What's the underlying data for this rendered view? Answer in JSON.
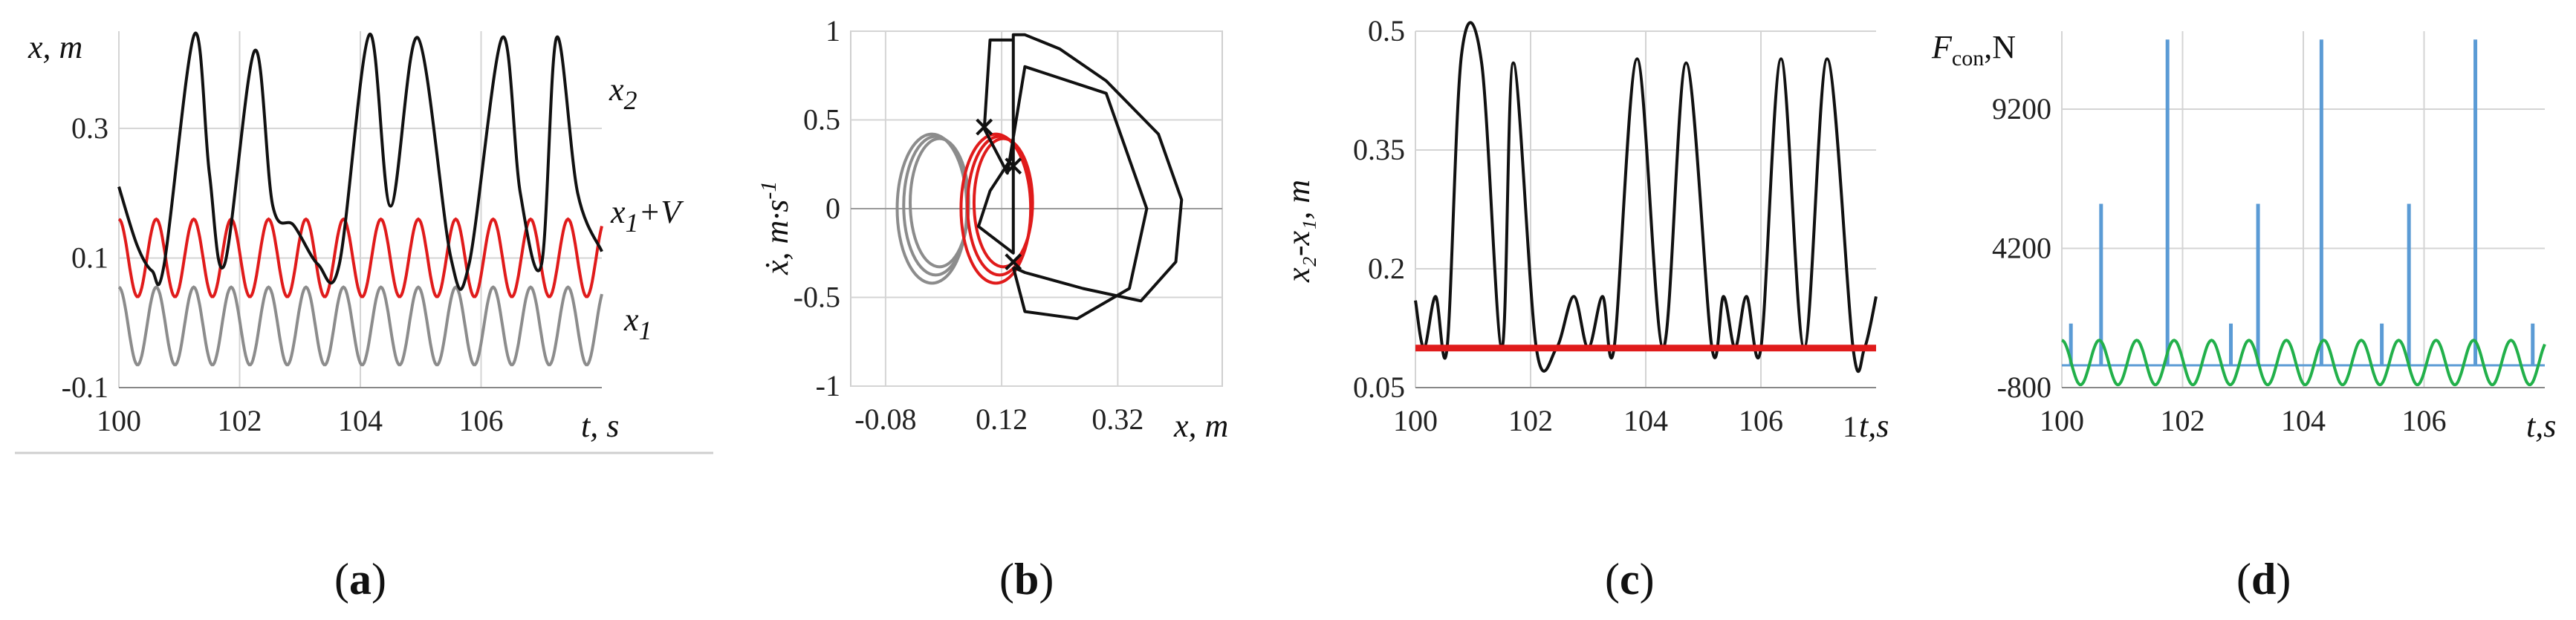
{
  "chart_data": [
    {
      "id": "a",
      "type": "line",
      "panel_label_open": "(",
      "panel_label_letter": "a",
      "panel_label_close": ")",
      "ylabel": "x, m",
      "xlabel": "t, s",
      "xlim": [
        100,
        108
      ],
      "ylim": [
        -0.1,
        0.45
      ],
      "xticks": [
        "100",
        "102",
        "104",
        "106"
      ],
      "xtick_values": [
        100,
        102,
        104,
        106
      ],
      "yticks": [
        "-0.1",
        "0.1",
        "0.3"
      ],
      "ytick_values": [
        -0.1,
        0.1,
        0.3
      ],
      "series": [
        {
          "name": "x2",
          "label_main": "x",
          "label_sub": "2",
          "label_rest": "",
          "color": "#111111",
          "x": [
            100,
            100.3,
            100.55,
            100.75,
            101.25,
            101.5,
            101.75,
            102.25,
            102.55,
            102.9,
            103.3,
            103.65,
            104.15,
            104.5,
            104.95,
            105.5,
            105.8,
            106.35,
            106.65,
            107.0,
            107.25,
            107.6,
            108
          ],
          "y": [
            0.21,
            0.12,
            0.08,
            0.09,
            0.445,
            0.23,
            0.09,
            0.42,
            0.18,
            0.15,
            0.09,
            0.09,
            0.445,
            0.18,
            0.44,
            0.1,
            0.09,
            0.44,
            0.2,
            0.09,
            0.44,
            0.2,
            0.11
          ]
        },
        {
          "name": "x1+V",
          "label_main": "x",
          "label_sub": "1",
          "label_rest": "+V",
          "color": "#e01b1b",
          "amplitude": 0.06,
          "mean": 0.1,
          "period": 0.62,
          "phase": 0.0
        },
        {
          "name": "x1",
          "label_main": "x",
          "label_sub": "1",
          "label_rest": "",
          "color": "#8c8c8c",
          "amplitude": 0.06,
          "mean": -0.005,
          "period": 0.62,
          "phase": 0.0
        }
      ]
    },
    {
      "id": "b",
      "type": "line",
      "panel_label_open": "(",
      "panel_label_letter": "b",
      "panel_label_close": ")",
      "ylabel_main": "ẋ, m·s",
      "ylabel_sup": "-1",
      "xlabel": "x, m",
      "xlim": [
        -0.14,
        0.5
      ],
      "ylim": [
        -1,
        1
      ],
      "xticks": [
        "-0.08",
        "0.12",
        "0.32"
      ],
      "xtick_values": [
        -0.08,
        0.12,
        0.32
      ],
      "yticks": [
        "-1",
        "-0.5",
        "0",
        "0.5",
        "1"
      ],
      "ytick_values": [
        -1,
        -0.5,
        0,
        0.5,
        1
      ],
      "series": [
        {
          "name": "gray-cycle",
          "color": "#8c8c8c",
          "center": [
            0.0,
            0.0
          ],
          "radius": [
            0.06,
            0.42
          ]
        },
        {
          "name": "red-cycle",
          "color": "#e01b1b",
          "center": [
            0.11,
            0.0
          ],
          "radius": [
            0.06,
            0.42
          ]
        },
        {
          "name": "black-cycle",
          "color": "#111111",
          "x": [
            0.14,
            0.16,
            0.26,
            0.36,
            0.42,
            0.43,
            0.39,
            0.3,
            0.22,
            0.16,
            0.14,
            0.14,
            0.1,
            0.08,
            0.1,
            0.14,
            0.14,
            0.1,
            0.09,
            0.13,
            0.16,
            0.3,
            0.37,
            0.34,
            0.25,
            0.16,
            0.14
          ],
          "y": [
            -0.33,
            -0.36,
            -0.45,
            -0.52,
            -0.3,
            0.05,
            0.42,
            0.72,
            0.9,
            0.98,
            0.98,
            0.3,
            0.1,
            -0.1,
            -0.15,
            -0.25,
            0.95,
            0.95,
            0.45,
            0.2,
            0.8,
            0.65,
            0.0,
            -0.45,
            -0.62,
            -0.58,
            -0.33
          ]
        },
        {
          "name": "crossings",
          "color": "#111111",
          "x": [
            0.09,
            0.14,
            0.14
          ],
          "y": [
            0.46,
            0.24,
            -0.3
          ]
        }
      ]
    },
    {
      "id": "c",
      "type": "line",
      "panel_label_open": "(",
      "panel_label_letter": "c",
      "panel_label_close": ")",
      "ylabel": "x₂-x₁, m",
      "xlabel": "t,s",
      "xlabel_prefix": "1",
      "xlim": [
        100,
        108
      ],
      "ylim": [
        0.05,
        0.5
      ],
      "xticks": [
        "100",
        "102",
        "104",
        "106"
      ],
      "xtick_values": [
        100,
        102,
        104,
        106
      ],
      "yticks": [
        "0.05",
        "0.2",
        "0.35",
        "0.5"
      ],
      "ytick_values": [
        0.05,
        0.2,
        0.35,
        0.5
      ],
      "series": [
        {
          "name": "gap",
          "color": "#111111",
          "x": [
            100,
            100.15,
            100.35,
            100.55,
            100.8,
            101.15,
            101.5,
            101.7,
            102.1,
            102.45,
            102.75,
            103.0,
            103.25,
            103.45,
            103.85,
            104.3,
            104.7,
            105.15,
            105.35,
            105.55,
            105.75,
            106.0,
            106.35,
            106.75,
            107.15,
            107.6,
            107.8,
            108
          ],
          "y": [
            0.16,
            0.1,
            0.165,
            0.1,
            0.47,
            0.46,
            0.1,
            0.46,
            0.1,
            0.1,
            0.165,
            0.1,
            0.165,
            0.1,
            0.465,
            0.1,
            0.46,
            0.1,
            0.165,
            0.1,
            0.165,
            0.1,
            0.465,
            0.1,
            0.465,
            0.1,
            0.1,
            0.165
          ]
        },
        {
          "name": "contact-threshold",
          "color": "#e01b1b",
          "x": [
            100,
            108
          ],
          "y": [
            0.1,
            0.1
          ]
        }
      ]
    },
    {
      "id": "d",
      "type": "line",
      "panel_label_open": "(",
      "panel_label_letter": "d",
      "panel_label_close": ")",
      "ylabel_main": "F",
      "ylabel_sub": "con",
      "ylabel_rest": ",N",
      "xlabel": "t,s",
      "xlim": [
        100,
        108
      ],
      "ylim": [
        -800,
        12000
      ],
      "xticks": [
        "100",
        "102",
        "104",
        "106"
      ],
      "xtick_values": [
        100,
        102,
        104,
        106
      ],
      "yticks": [
        "-800",
        "4200",
        "9200"
      ],
      "ytick_values": [
        -800,
        4200,
        9200
      ],
      "series": [
        {
          "name": "contact-force",
          "color": "#5b9bd5",
          "x": [
            100.15,
            100.65,
            101.75,
            102.8,
            103.25,
            104.3,
            105.3,
            105.75,
            106.85,
            107.8
          ],
          "y": [
            1500,
            5800,
            11700,
            1500,
            5800,
            11700,
            1500,
            5800,
            11700,
            1500
          ]
        },
        {
          "name": "excitation",
          "color": "#22b04a",
          "amplitude": 800,
          "mean": 100,
          "period": 0.62,
          "phase": 0.0
        }
      ]
    }
  ]
}
